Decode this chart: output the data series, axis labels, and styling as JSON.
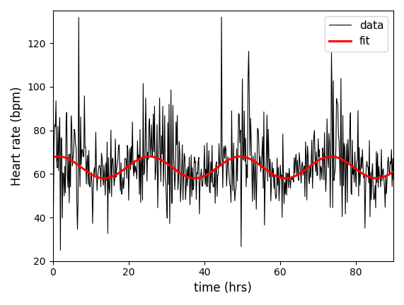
{
  "title": "",
  "xlabel": "time (hrs)",
  "ylabel": "Heart rate (bpm)",
  "xlim": [
    0,
    90
  ],
  "ylim": [
    20,
    135
  ],
  "yticks": [
    20,
    40,
    60,
    80,
    100,
    120
  ],
  "xticks": [
    0,
    20,
    40,
    60,
    80
  ],
  "data_color": "#000000",
  "fit_color": "#ff0000",
  "data_linewidth": 0.8,
  "fit_linewidth": 2.2,
  "legend_labels": [
    "data",
    "fit"
  ],
  "fit_amplitude": 5.0,
  "fit_mean": 63.0,
  "fit_period": 24.0,
  "fit_phase": 0.4,
  "noise_seed": 17,
  "n_points": 540,
  "t_max": 90,
  "spike_time": 44.5,
  "spike_value": 132,
  "background_color": "#ffffff",
  "figwidth": 5.71,
  "figheight": 4.32,
  "dpi": 100
}
